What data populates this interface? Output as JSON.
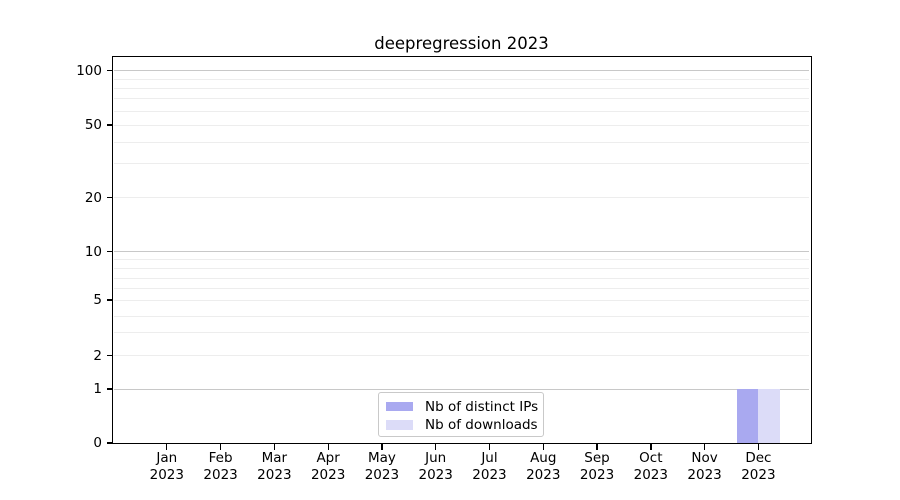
{
  "chart_data": {
    "type": "bar",
    "title": "deepregression 2023",
    "categories": [
      "Jan",
      "Feb",
      "Mar",
      "Apr",
      "May",
      "Jun",
      "Jul",
      "Aug",
      "Sep",
      "Oct",
      "Nov",
      "Dec"
    ],
    "category_year": "2023",
    "series": [
      {
        "name": "Nb of distinct IPs",
        "color": "#a9a9f0",
        "values": [
          0,
          0,
          0,
          0,
          0,
          0,
          0,
          0,
          0,
          0,
          0,
          1
        ]
      },
      {
        "name": "Nb of downloads",
        "color": "#dcdcf8",
        "values": [
          0,
          0,
          0,
          0,
          0,
          0,
          0,
          0,
          0,
          0,
          0,
          1
        ]
      }
    ],
    "xlabel": "",
    "ylabel": "",
    "yscale": "log-like (compressed low decade, linear 0-1)",
    "ylim": [
      0,
      120
    ],
    "yticks": [
      0,
      1,
      2,
      5,
      10,
      20,
      50,
      100
    ],
    "minor_grid_values": [
      2,
      3,
      4,
      5,
      6,
      7,
      8,
      9,
      20,
      30,
      40,
      50,
      60,
      70,
      80,
      90
    ],
    "major_grid_values": [
      1,
      10,
      100
    ],
    "grid": true,
    "legend_position": "bottom-center"
  },
  "colors": {
    "minor_grid": "#ededed",
    "major_grid": "#c8c8c8",
    "axis": "#000000",
    "background": "#ffffff"
  }
}
